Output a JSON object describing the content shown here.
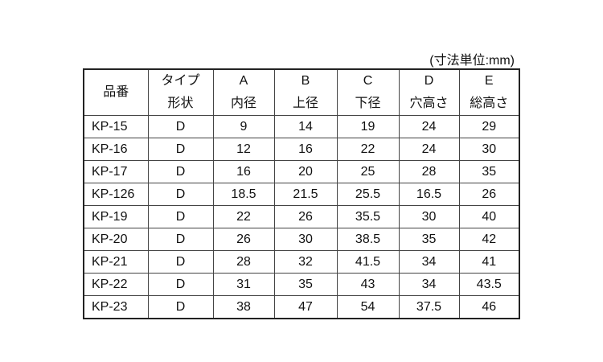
{
  "unit_note": "(寸法単位:mm)",
  "header": {
    "product_no": "品番",
    "columns": [
      {
        "top": "タイプ",
        "bottom": "形状"
      },
      {
        "top": "A",
        "bottom": "内径"
      },
      {
        "top": "B",
        "bottom": "上径"
      },
      {
        "top": "C",
        "bottom": "下径"
      },
      {
        "top": "D",
        "bottom": "穴高さ"
      },
      {
        "top": "E",
        "bottom": "総高さ"
      }
    ]
  },
  "rows": [
    [
      "KP-15",
      "D",
      "9",
      "14",
      "19",
      "24",
      "29"
    ],
    [
      "KP-16",
      "D",
      "12",
      "16",
      "22",
      "24",
      "30"
    ],
    [
      "KP-17",
      "D",
      "16",
      "20",
      "25",
      "28",
      "35"
    ],
    [
      "KP-126",
      "D",
      "18.5",
      "21.5",
      "25.5",
      "16.5",
      "26"
    ],
    [
      "KP-19",
      "D",
      "22",
      "26",
      "35.5",
      "30",
      "40"
    ],
    [
      "KP-20",
      "D",
      "26",
      "30",
      "38.5",
      "35",
      "42"
    ],
    [
      "KP-21",
      "D",
      "28",
      "32",
      "41.5",
      "34",
      "41"
    ],
    [
      "KP-22",
      "D",
      "31",
      "35",
      "43",
      "34",
      "43.5"
    ],
    [
      "KP-23",
      "D",
      "38",
      "47",
      "54",
      "37.5",
      "46"
    ]
  ]
}
